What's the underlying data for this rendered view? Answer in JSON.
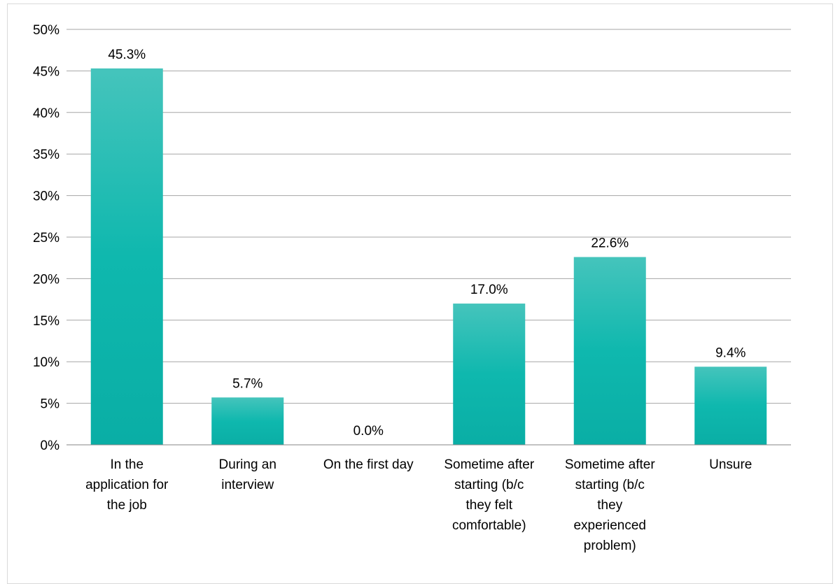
{
  "chart_data": {
    "type": "bar",
    "title": "",
    "xlabel": "",
    "ylabel": "",
    "ylim": [
      0,
      50
    ],
    "y_tick_step": 5,
    "y_tick_format": "percent",
    "grid": true,
    "legend": "none",
    "bar_color": "#0fb8ae",
    "bar_color_top": "#45c4bc",
    "gridline_color": "#a6a6a6",
    "categories": [
      "In the application for the job",
      "During an interview",
      "On the first day",
      "Sometime after starting (b/c they felt comfortable)",
      "Sometime after starting (b/c they experienced problem)",
      "Unsure"
    ],
    "category_lines": [
      [
        "In the",
        "application for",
        "the job"
      ],
      [
        "During an",
        "interview"
      ],
      [
        "On the first day"
      ],
      [
        "Sometime after",
        "starting (b/c",
        "they felt",
        "comfortable)"
      ],
      [
        "Sometime after",
        "starting (b/c",
        "they",
        "experienced",
        "problem)"
      ],
      [
        "Unsure"
      ]
    ],
    "values": [
      45.3,
      5.7,
      0.0,
      17.0,
      22.6,
      9.4
    ],
    "data_labels": [
      "45.3%",
      "5.7%",
      "0.0%",
      "17.0%",
      "22.6%",
      "9.4%"
    ]
  }
}
